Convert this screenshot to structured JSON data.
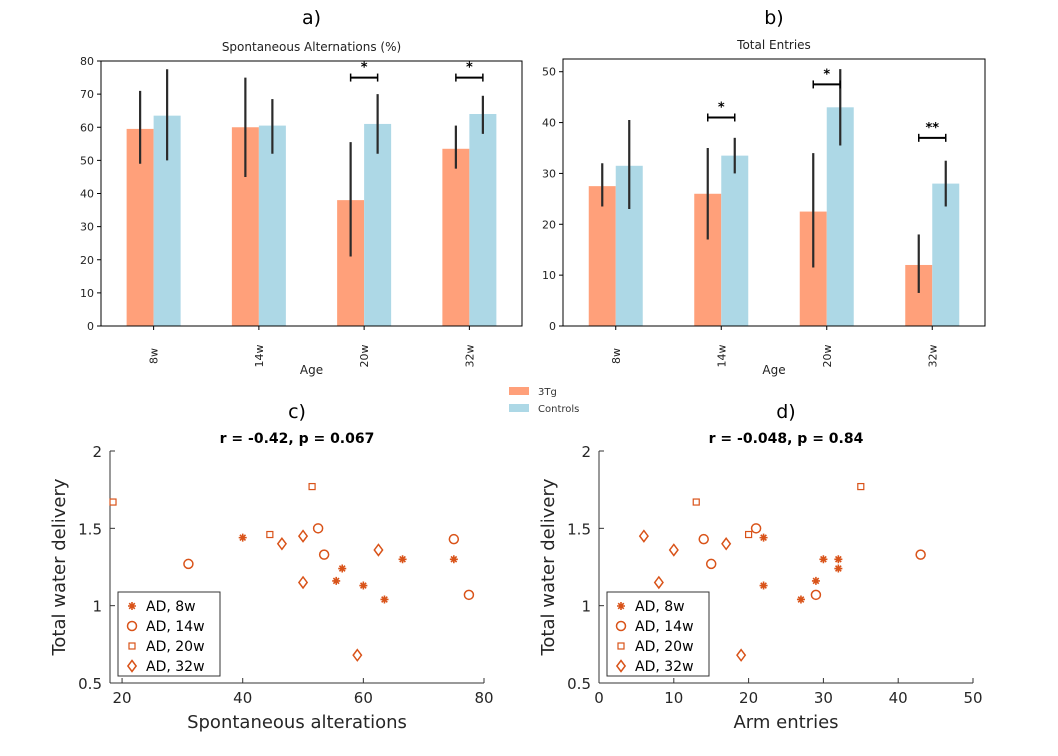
{
  "figure": {
    "legend": {
      "entries": [
        {
          "label": "3Tg",
          "color": "#ffa07a"
        },
        {
          "label": "Controls",
          "color": "#add8e6"
        }
      ]
    }
  },
  "chart_data": [
    {
      "panel": "a)",
      "type": "bar",
      "title": "Spontaneous Alternations (%)",
      "xlabel": "Age",
      "ylabel": "",
      "categories": [
        "8w",
        "14w",
        "20w",
        "32w"
      ],
      "ylim": [
        0,
        80
      ],
      "yticks": [
        0,
        10,
        20,
        30,
        40,
        50,
        60,
        70,
        80
      ],
      "series": [
        {
          "name": "3Tg",
          "color": "#ffa07a",
          "values": [
            59.5,
            60,
            38,
            53.5
          ],
          "err_low": [
            49,
            45,
            21,
            47.5
          ],
          "err_high": [
            71,
            75,
            55.5,
            60.5
          ]
        },
        {
          "name": "Controls",
          "color": "#add8e6",
          "values": [
            63.5,
            60.5,
            61,
            64
          ],
          "err_low": [
            50,
            52,
            52,
            58
          ],
          "err_high": [
            77.5,
            68.5,
            70,
            69.5
          ]
        }
      ],
      "significance": [
        {
          "category": "20w",
          "label": "*",
          "y": 75
        },
        {
          "category": "32w",
          "label": "*",
          "y": 75
        }
      ]
    },
    {
      "panel": "b)",
      "type": "bar",
      "title": "Total Entries",
      "xlabel": "Age",
      "ylabel": "",
      "categories": [
        "8w",
        "14w",
        "20w",
        "32w"
      ],
      "ylim": [
        0,
        52.5
      ],
      "yticks": [
        0,
        10,
        20,
        30,
        40,
        50
      ],
      "series": [
        {
          "name": "3Tg",
          "color": "#ffa07a",
          "values": [
            27.5,
            26,
            22.5,
            12
          ],
          "err_low": [
            23.5,
            17,
            11.5,
            6.5
          ],
          "err_high": [
            32,
            35,
            34,
            18
          ]
        },
        {
          "name": "Controls",
          "color": "#add8e6",
          "values": [
            31.5,
            33.5,
            43,
            28
          ],
          "err_low": [
            23,
            30,
            35.5,
            23.5
          ],
          "err_high": [
            40.5,
            37,
            50.5,
            32.5
          ]
        }
      ],
      "significance": [
        {
          "category": "14w",
          "label": "*",
          "y": 41
        },
        {
          "category": "20w",
          "label": "*",
          "y": 47.5
        },
        {
          "category": "32w",
          "label": "**",
          "y": 37
        }
      ]
    },
    {
      "panel": "c)",
      "type": "scatter",
      "title": "r = -0.42, p = 0.067",
      "xlabel": "Spontaneous alterations",
      "ylabel": "Total water delivery",
      "xlim": [
        18,
        80
      ],
      "ylim": [
        0.5,
        2
      ],
      "xticks": [
        20,
        40,
        60,
        80
      ],
      "yticks": [
        0.5,
        1,
        1.5,
        2
      ],
      "ytick_labels": [
        "0.5",
        "1",
        "1.5",
        "2"
      ],
      "color": "#d95319",
      "legend": [
        "AD, 8w",
        "AD, 14w",
        "AD, 20w",
        "AD, 32w"
      ],
      "series": [
        {
          "name": "AD, 8w",
          "marker": "asterisk",
          "points": [
            [
              40,
              1.44
            ],
            [
              55.5,
              1.16
            ],
            [
              56.5,
              1.24
            ],
            [
              60,
              1.13
            ],
            [
              63.5,
              1.04
            ],
            [
              66.5,
              1.3
            ],
            [
              75,
              1.3
            ]
          ]
        },
        {
          "name": "AD, 14w",
          "marker": "circle",
          "points": [
            [
              31,
              1.27
            ],
            [
              52.5,
              1.5
            ],
            [
              53.5,
              1.33
            ],
            [
              75,
              1.43
            ],
            [
              77.5,
              1.07
            ]
          ]
        },
        {
          "name": "AD, 20w",
          "marker": "square",
          "points": [
            [
              18.5,
              1.67
            ],
            [
              44.5,
              1.46
            ],
            [
              51.5,
              1.77
            ]
          ]
        },
        {
          "name": "AD, 32w",
          "marker": "diamond",
          "points": [
            [
              46.5,
              1.4
            ],
            [
              50,
              1.45
            ],
            [
              50,
              1.15
            ],
            [
              59,
              0.68
            ],
            [
              62.5,
              1.36
            ]
          ]
        }
      ]
    },
    {
      "panel": "d)",
      "type": "scatter",
      "title": "r = -0.048, p = 0.84",
      "xlabel": "Arm entries",
      "ylabel": "Total water delivery",
      "xlim": [
        0,
        50
      ],
      "ylim": [
        0.5,
        2
      ],
      "xticks": [
        0,
        10,
        20,
        30,
        40,
        50
      ],
      "yticks": [
        0.5,
        1,
        1.5,
        2
      ],
      "ytick_labels": [
        "0.5",
        "1",
        "1.5",
        "2"
      ],
      "color": "#d95319",
      "legend": [
        "AD, 8w",
        "AD, 14w",
        "AD, 20w",
        "AD, 32w"
      ],
      "series": [
        {
          "name": "AD, 8w",
          "marker": "asterisk",
          "points": [
            [
              22,
              1.44
            ],
            [
              22,
              1.13
            ],
            [
              27,
              1.04
            ],
            [
              29,
              1.16
            ],
            [
              30,
              1.3
            ],
            [
              32,
              1.3
            ],
            [
              32,
              1.24
            ]
          ]
        },
        {
          "name": "AD, 14w",
          "marker": "circle",
          "points": [
            [
              14,
              1.43
            ],
            [
              15,
              1.27
            ],
            [
              21,
              1.5
            ],
            [
              29,
              1.07
            ],
            [
              43,
              1.33
            ]
          ]
        },
        {
          "name": "AD, 20w",
          "marker": "square",
          "points": [
            [
              13,
              1.67
            ],
            [
              20,
              1.46
            ],
            [
              35,
              1.77
            ]
          ]
        },
        {
          "name": "AD, 32w",
          "marker": "diamond",
          "points": [
            [
              6,
              1.45
            ],
            [
              8,
              1.15
            ],
            [
              10,
              1.36
            ],
            [
              17,
              1.4
            ],
            [
              19,
              0.68
            ]
          ]
        }
      ]
    }
  ]
}
